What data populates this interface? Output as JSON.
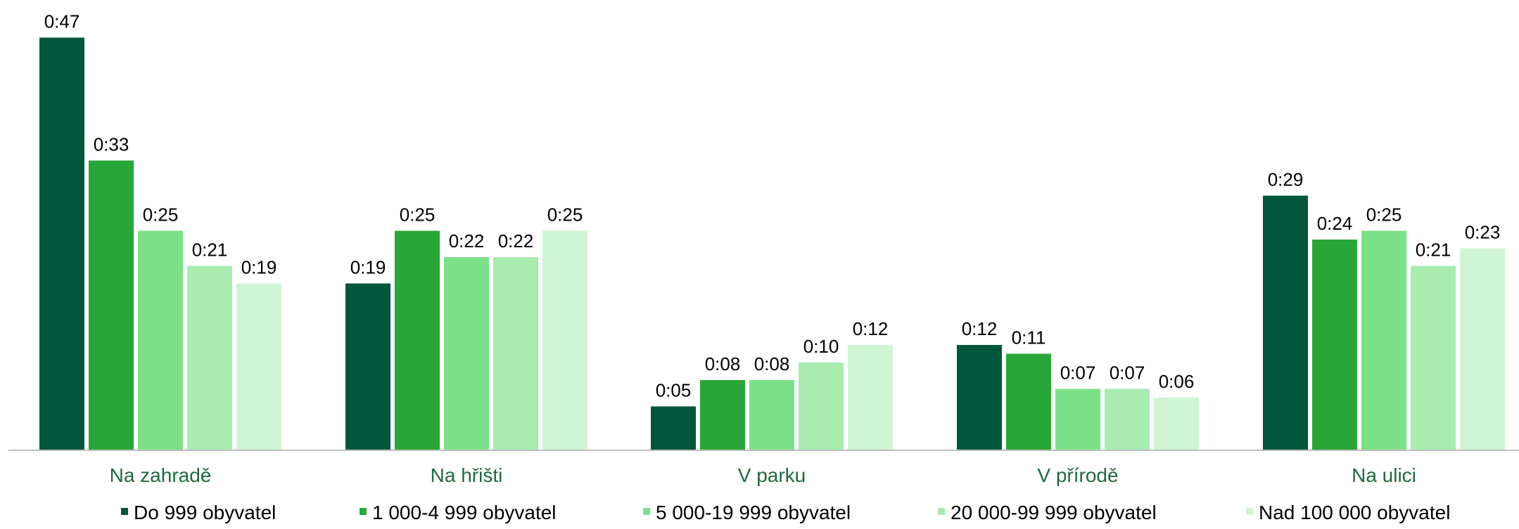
{
  "chart_data": {
    "type": "bar",
    "categories": [
      "Na zahradě",
      "Na hřišti",
      "V parku",
      "V přírodě",
      "Na ulici"
    ],
    "series": [
      {
        "name": "Do 999 obyvatel",
        "values": [
          47,
          19,
          5,
          12,
          29
        ],
        "labels": [
          "0:47",
          "0:19",
          "0:05",
          "0:12",
          "0:29"
        ],
        "color": "#00573B"
      },
      {
        "name": "1 000-4 999 obyvatel",
        "values": [
          33,
          25,
          8,
          11,
          24
        ],
        "labels": [
          "0:33",
          "0:25",
          "0:08",
          "0:11",
          "0:24"
        ],
        "color": "#28A738"
      },
      {
        "name": "5 000-19 999 obyvatel",
        "values": [
          25,
          22,
          8,
          7,
          25
        ],
        "labels": [
          "0:25",
          "0:22",
          "0:08",
          "0:07",
          "0:25"
        ],
        "color": "#7BE188"
      },
      {
        "name": "20 000-99 999 obyvatel",
        "values": [
          21,
          22,
          10,
          7,
          21
        ],
        "labels": [
          "0:21",
          "0:22",
          "0:10",
          "0:07",
          "0:21"
        ],
        "color": "#A8ECB0"
      },
      {
        "name": "Nad 100 000 obyvatel",
        "values": [
          19,
          25,
          12,
          6,
          23
        ],
        "labels": [
          "0:19",
          "0:25",
          "0:12",
          "0:06",
          "0:23"
        ],
        "color": "#D0F5D4"
      }
    ],
    "value_unit": "minutes",
    "ylim": [
      0,
      50
    ],
    "grid": false,
    "legend_position": "bottom",
    "category_label_color": "#1E6B3C",
    "axis_color": "#BFBFBF"
  }
}
